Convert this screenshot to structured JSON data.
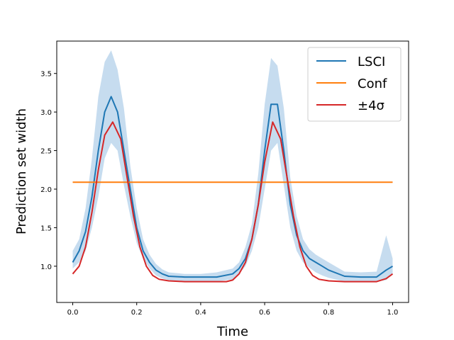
{
  "chart_data": {
    "type": "line",
    "title": "",
    "xlabel": "Time",
    "ylabel": "Prediction set width",
    "xlim": [
      -0.05,
      1.05
    ],
    "ylim": [
      0.53,
      3.92
    ],
    "xticks": [
      0.0,
      0.2,
      0.4,
      0.6,
      0.8,
      1.0
    ],
    "xtick_labels": [
      "0.0",
      "0.2",
      "0.4",
      "0.6",
      "0.8",
      "1.0"
    ],
    "yticks": [
      1.0,
      1.5,
      2.0,
      2.5,
      3.0,
      3.5
    ],
    "ytick_labels": [
      "1.0",
      "1.5",
      "2.0",
      "2.5",
      "3.0",
      "3.5"
    ],
    "grid": false,
    "legend_position": "top-right",
    "series": [
      {
        "name": "LSCI",
        "color": "#1f77b4",
        "band_color": "#aecde8",
        "x": [
          0.0,
          0.02,
          0.04,
          0.06,
          0.08,
          0.1,
          0.12,
          0.14,
          0.16,
          0.18,
          0.2,
          0.22,
          0.24,
          0.26,
          0.28,
          0.3,
          0.35,
          0.4,
          0.45,
          0.5,
          0.52,
          0.54,
          0.56,
          0.58,
          0.6,
          0.62,
          0.64,
          0.66,
          0.68,
          0.7,
          0.72,
          0.74,
          0.76,
          0.78,
          0.8,
          0.85,
          0.9,
          0.95,
          0.98,
          1.0
        ],
        "values": [
          1.05,
          1.2,
          1.45,
          1.9,
          2.5,
          3.0,
          3.2,
          3.0,
          2.5,
          2.0,
          1.5,
          1.2,
          1.05,
          0.95,
          0.9,
          0.87,
          0.86,
          0.86,
          0.86,
          0.9,
          0.97,
          1.1,
          1.35,
          1.8,
          2.5,
          3.1,
          3.1,
          2.5,
          1.8,
          1.4,
          1.2,
          1.1,
          1.05,
          1.0,
          0.95,
          0.87,
          0.86,
          0.86,
          0.95,
          1.0
        ],
        "lower": [
          0.97,
          1.05,
          1.2,
          1.5,
          1.9,
          2.4,
          2.6,
          2.5,
          2.05,
          1.65,
          1.3,
          1.1,
          0.97,
          0.88,
          0.84,
          0.82,
          0.8,
          0.8,
          0.8,
          0.83,
          0.9,
          1.0,
          1.2,
          1.5,
          2.0,
          2.5,
          2.6,
          2.05,
          1.5,
          1.2,
          1.05,
          0.98,
          0.92,
          0.88,
          0.85,
          0.8,
          0.8,
          0.8,
          0.82,
          0.9
        ],
        "upper": [
          1.2,
          1.35,
          1.75,
          2.4,
          3.2,
          3.65,
          3.8,
          3.55,
          3.05,
          2.3,
          1.75,
          1.35,
          1.15,
          1.03,
          0.96,
          0.92,
          0.9,
          0.9,
          0.92,
          0.97,
          1.05,
          1.25,
          1.55,
          2.2,
          3.1,
          3.7,
          3.6,
          3.05,
          2.15,
          1.65,
          1.35,
          1.22,
          1.15,
          1.1,
          1.05,
          0.93,
          0.92,
          0.93,
          1.4,
          1.1
        ]
      },
      {
        "name": "Conf",
        "color": "#ff7f0e",
        "x": [
          0.0,
          1.0
        ],
        "values": [
          2.09,
          2.09
        ]
      },
      {
        "name": "±4σ",
        "color": "#d62728",
        "x": [
          0.0,
          0.02,
          0.04,
          0.06,
          0.08,
          0.1,
          0.125,
          0.15,
          0.17,
          0.19,
          0.21,
          0.23,
          0.25,
          0.27,
          0.3,
          0.35,
          0.4,
          0.45,
          0.48,
          0.5,
          0.52,
          0.54,
          0.56,
          0.58,
          0.6,
          0.625,
          0.65,
          0.67,
          0.69,
          0.71,
          0.73,
          0.75,
          0.77,
          0.8,
          0.85,
          0.9,
          0.95,
          0.98,
          1.0
        ],
        "values": [
          0.9,
          1.0,
          1.25,
          1.7,
          2.25,
          2.7,
          2.87,
          2.65,
          2.15,
          1.65,
          1.25,
          1.0,
          0.88,
          0.83,
          0.81,
          0.8,
          0.8,
          0.8,
          0.8,
          0.82,
          0.9,
          1.05,
          1.35,
          1.8,
          2.35,
          2.87,
          2.65,
          2.15,
          1.65,
          1.25,
          1.0,
          0.88,
          0.83,
          0.81,
          0.8,
          0.8,
          0.8,
          0.84,
          0.9
        ]
      }
    ]
  }
}
